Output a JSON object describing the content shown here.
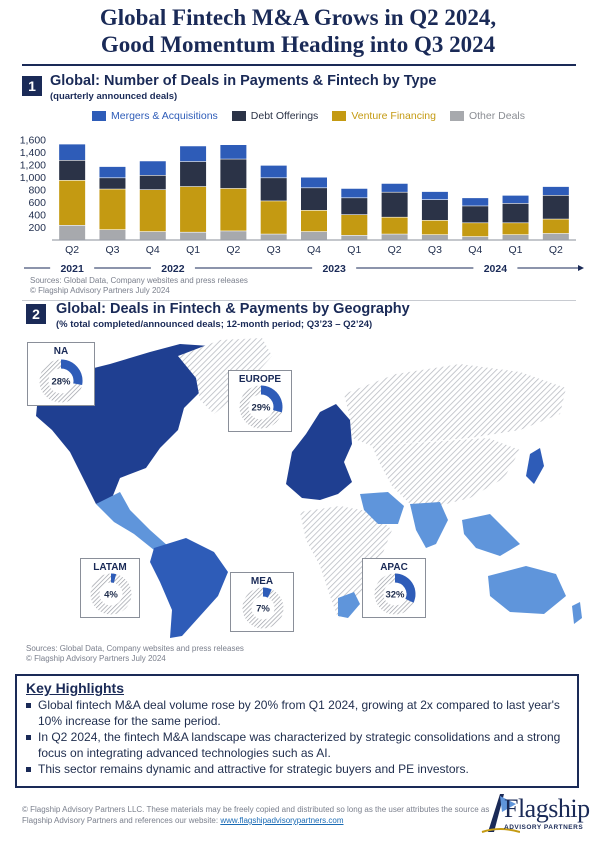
{
  "header": {
    "title_line1": "Global Fintech M&A Grows in Q2 2024,",
    "title_line2": "Good Momentum Heading into Q3 2024"
  },
  "section1": {
    "number": "1",
    "title": "Global: Number of Deals in Payments & Fintech by Type",
    "subtitle": "(quarterly announced deals)",
    "source_line1": "Sources: Global Data, Company websites and press releases",
    "source_line2": "© Flagship Advisory Partners July 2024"
  },
  "section2": {
    "number": "2",
    "title": "Global: Deals in Fintech & Payments by Geography",
    "subtitle": "(% total completed/announced deals; 12-month period; Q3’23 – Q2’24)",
    "source_line1": "Sources: Global Data, Company websites and press releases",
    "source_line2": "© Flagship Advisory Partners July 2024"
  },
  "colors": {
    "ma": "#2e5cb8",
    "debt": "#2b3347",
    "venture": "#c49a12",
    "other": "#a7a9ad",
    "navy": "#1a2a57",
    "region_dark": "#1f3f91",
    "region_light": "#5f95db",
    "region_hatch": "#c8cbd1"
  },
  "chart_data": [
    {
      "type": "bar",
      "stacked": true,
      "categories": [
        "Q2",
        "Q3",
        "Q4",
        "Q1",
        "Q2",
        "Q3",
        "Q4",
        "Q1",
        "Q2",
        "Q3",
        "Q4",
        "Q1",
        "Q2"
      ],
      "year_groups": [
        {
          "label": "2021",
          "start": 0,
          "end": 0
        },
        {
          "label": "2022",
          "start": 1,
          "end": 4
        },
        {
          "label": "2023",
          "start": 5,
          "end": 8
        },
        {
          "label": "2024",
          "start": 9,
          "end": 12
        }
      ],
      "yticks": [
        200,
        400,
        600,
        800,
        "1,000",
        "1,200",
        "1,400",
        "1,600"
      ],
      "ylim": [
        0,
        1600
      ],
      "legend_position": "top",
      "series": [
        {
          "name": "Mergers & Acquisitions",
          "color_key": "ma",
          "values": [
            260,
            180,
            230,
            250,
            230,
            200,
            170,
            150,
            140,
            130,
            130,
            130,
            140
          ]
        },
        {
          "name": "Debt Offerings",
          "color_key": "debt",
          "values": [
            320,
            180,
            230,
            400,
            470,
            370,
            360,
            270,
            400,
            330,
            270,
            310,
            380
          ]
        },
        {
          "name": "Venture Financing",
          "color_key": "venture",
          "values": [
            720,
            650,
            670,
            730,
            680,
            530,
            340,
            330,
            270,
            230,
            220,
            190,
            230
          ]
        },
        {
          "name": "Other Deals",
          "color_key": "other",
          "values": [
            230,
            160,
            130,
            120,
            140,
            90,
            130,
            70,
            90,
            80,
            50,
            80,
            100
          ]
        }
      ]
    },
    {
      "type": "pie",
      "regions": [
        {
          "label": "NA",
          "value": 28,
          "display": "28%"
        },
        {
          "label": "EUROPE",
          "value": 29,
          "display": "29%"
        },
        {
          "label": "LATAM",
          "value": 4,
          "display": "4%"
        },
        {
          "label": "MEA",
          "value": 7,
          "display": "7%"
        },
        {
          "label": "APAC",
          "value": 32,
          "display": "32%"
        }
      ]
    }
  ],
  "highlights": {
    "title": "Key Highlights",
    "items": [
      "Global fintech M&A deal volume rose by 20% from Q1 2024, growing at 2x compared to last year's 10% increase for the same period.",
      "In Q2 2024, the fintech M&A landscape was characterized by strategic consolidations and a strong focus on integrating advanced technologies such as AI.",
      "This sector remains dynamic and attractive for strategic buyers and PE investors."
    ]
  },
  "footer": {
    "text": "© Flagship Advisory Partners LLC. These materials may be freely copied and distributed so long as the user attributes the source as Flagship Advisory Partners and references our website: ",
    "link": "www.flagshipadvisorypartners.com"
  },
  "logo": {
    "name": "Flagship",
    "sub": "ADVISORY PARTNERS"
  }
}
